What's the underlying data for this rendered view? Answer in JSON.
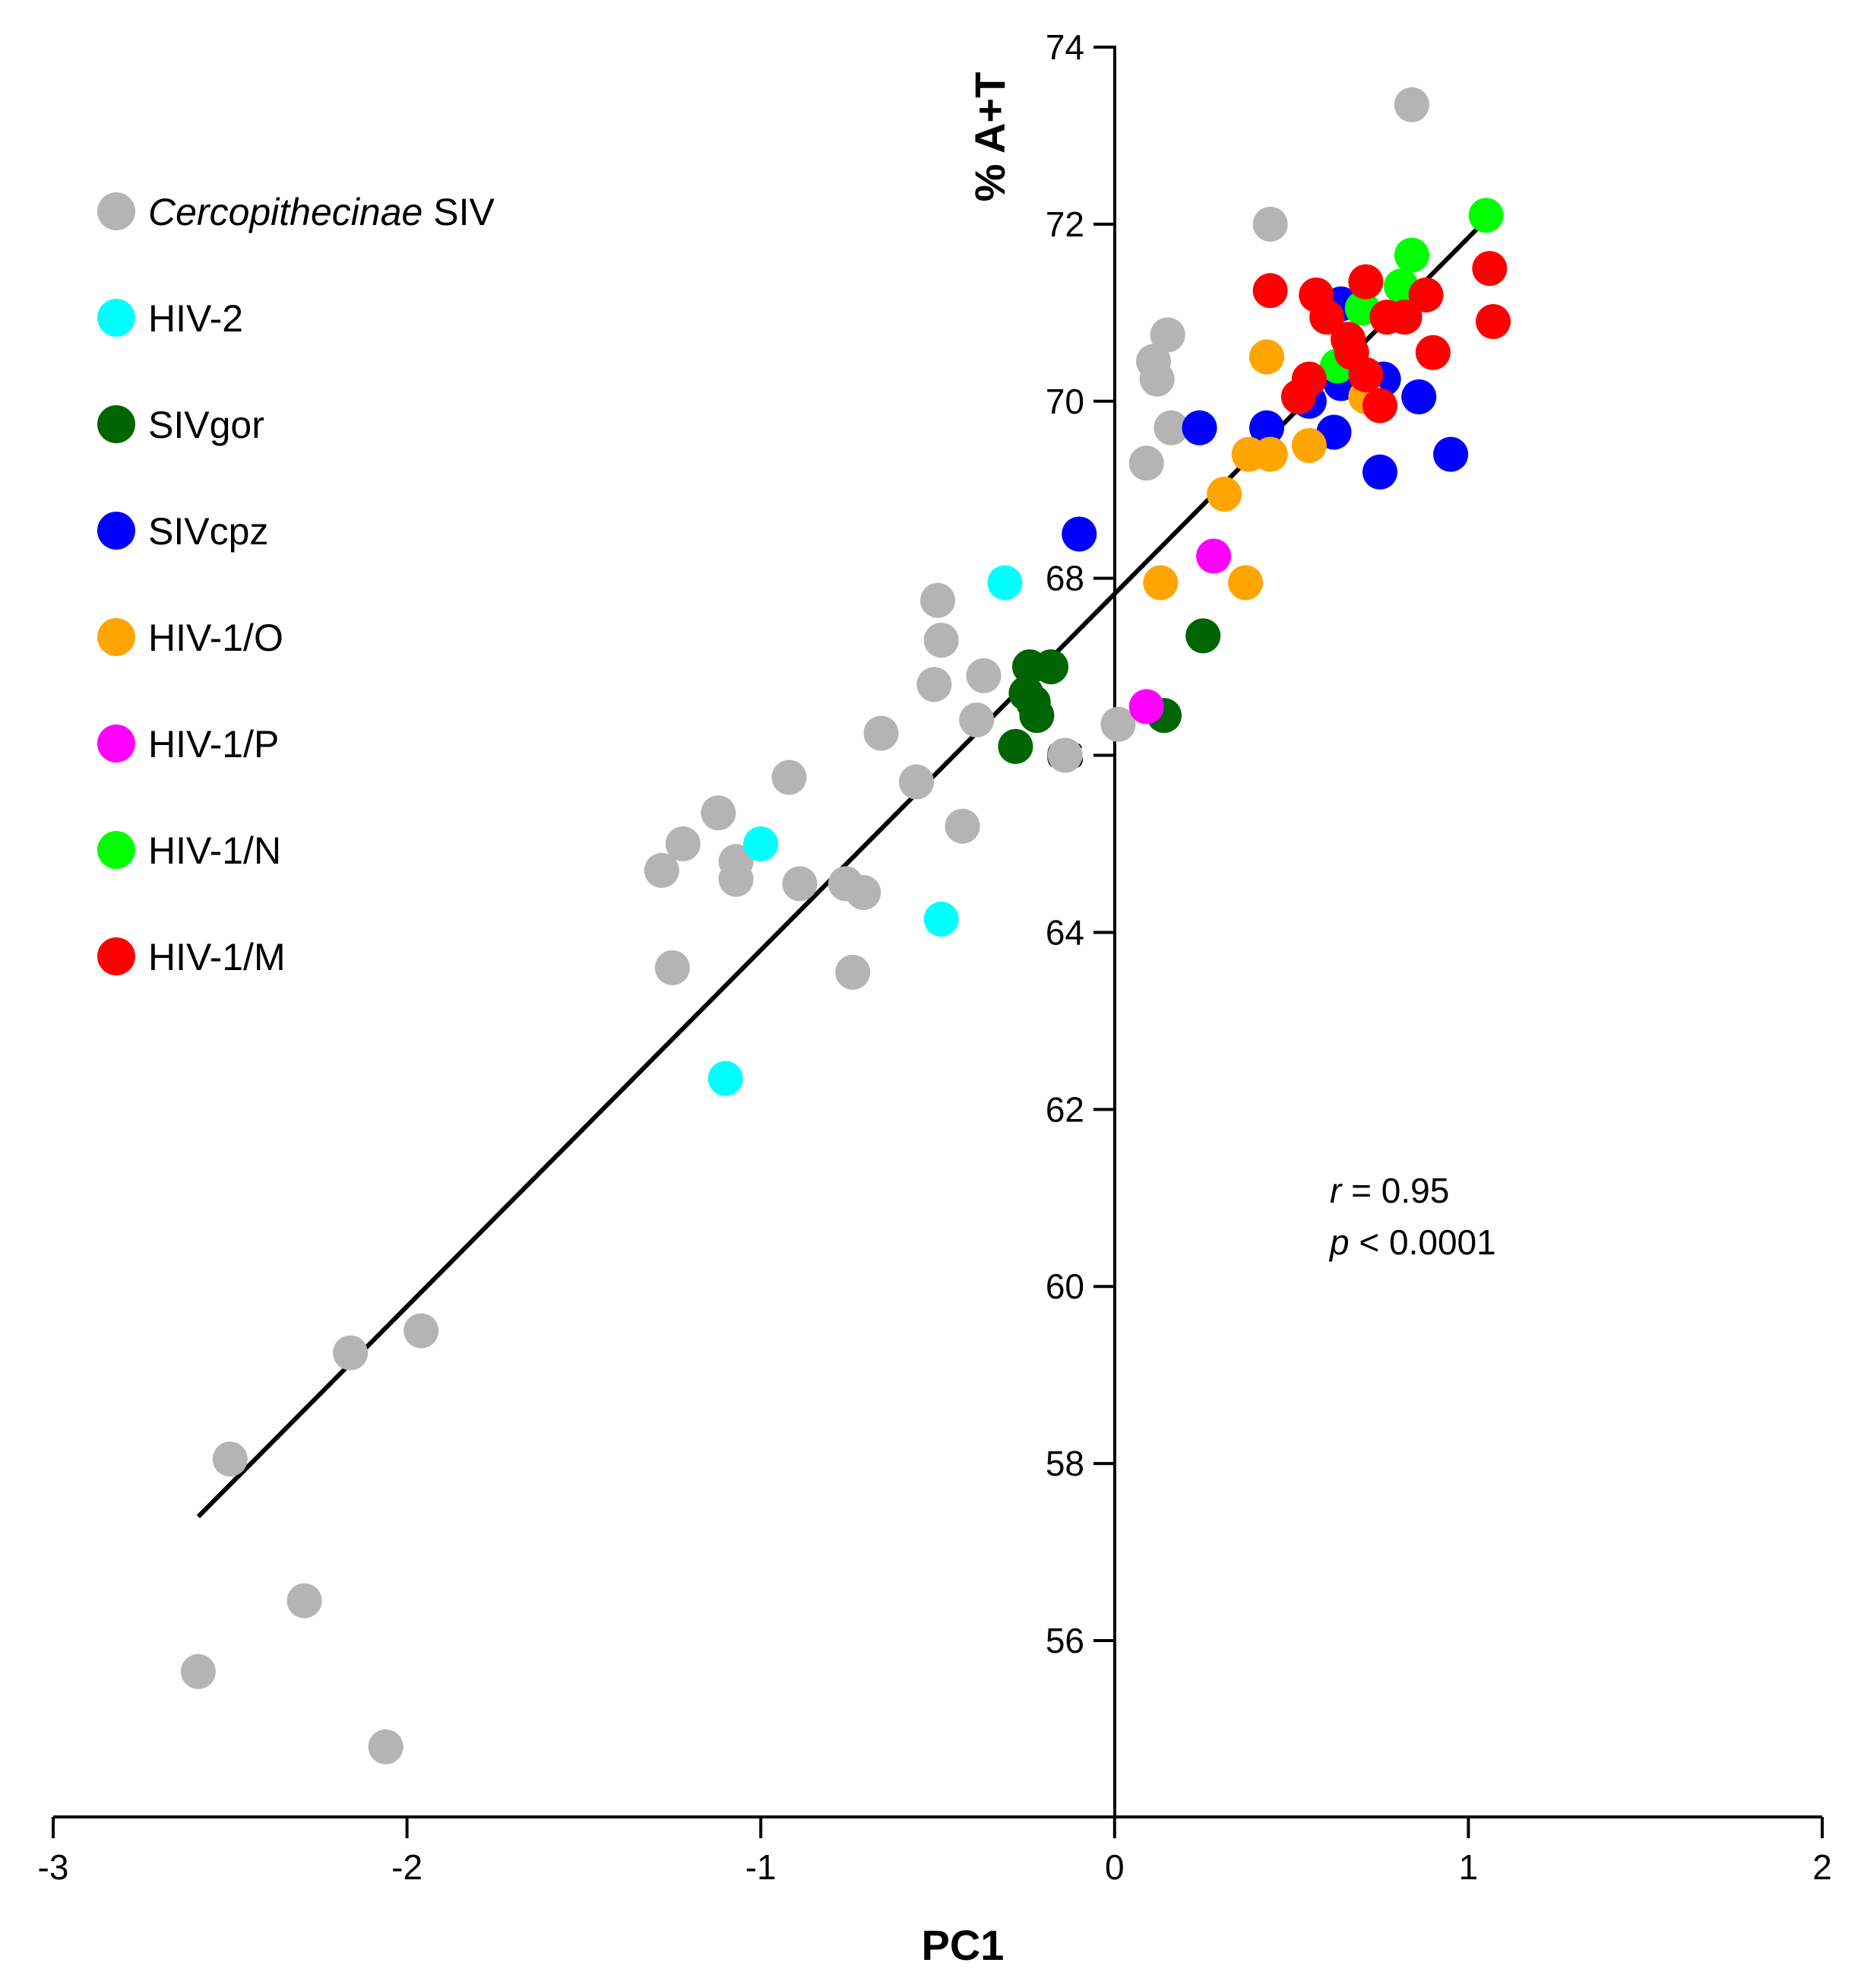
{
  "chart_data": {
    "type": "scatter",
    "title": "",
    "xlabel": "PC1",
    "ylabel": "% A+T",
    "xlim": [
      -3,
      2
    ],
    "ylim": [
      54.1,
      74
    ],
    "x_ticks": [
      -3,
      -2,
      -1,
      0,
      1,
      2
    ],
    "y_ticks": [
      56,
      58,
      60,
      62,
      64,
      66,
      68,
      70,
      72,
      74
    ],
    "grid": false,
    "legend_position": "top-left",
    "series": [
      {
        "name": "Cercopithecinae SIV",
        "name_italic": "Cercopithecinae",
        "name_rest": " SIV",
        "color": "#b4b4b4",
        "points": [
          [
            0.84,
            73.35
          ],
          [
            0.44,
            72.0
          ],
          [
            0.15,
            70.75
          ],
          [
            0.11,
            70.45
          ],
          [
            0.12,
            70.25
          ],
          [
            0.16,
            69.7
          ],
          [
            0.09,
            69.3
          ],
          [
            -0.5,
            67.75
          ],
          [
            -0.49,
            67.3
          ],
          [
            -0.37,
            66.9
          ],
          [
            -0.51,
            66.8
          ],
          [
            -0.39,
            66.4
          ],
          [
            -0.66,
            66.25
          ],
          [
            0.01,
            66.35
          ],
          [
            -0.14,
            66.0
          ],
          [
            -0.56,
            65.7
          ],
          [
            -0.92,
            65.75
          ],
          [
            -1.12,
            65.35
          ],
          [
            -1.22,
            65.0
          ],
          [
            -1.07,
            64.8
          ],
          [
            -1.07,
            64.6
          ],
          [
            -1.28,
            64.7
          ],
          [
            -0.89,
            64.55
          ],
          [
            -0.76,
            64.55
          ],
          [
            -0.71,
            64.45
          ],
          [
            -0.43,
            65.2
          ],
          [
            -1.25,
            63.6
          ],
          [
            -0.74,
            63.55
          ],
          [
            -1.96,
            59.5
          ],
          [
            -2.16,
            59.25
          ],
          [
            -2.5,
            58.05
          ],
          [
            -2.29,
            56.45
          ],
          [
            -2.59,
            55.65
          ],
          [
            -2.06,
            54.8
          ]
        ]
      },
      {
        "name": "HIV-2",
        "color": "#00ffff",
        "points": [
          [
            -0.31,
            67.95
          ],
          [
            -1.0,
            65.0
          ],
          [
            -0.49,
            64.15
          ],
          [
            -1.1,
            62.35
          ]
        ]
      },
      {
        "name": "SIVgor",
        "color": "#006400",
        "points": [
          [
            0.25,
            67.35
          ],
          [
            -0.24,
            67.0
          ],
          [
            -0.18,
            67.0
          ],
          [
            -0.25,
            66.7
          ],
          [
            -0.23,
            66.6
          ],
          [
            -0.22,
            66.45
          ],
          [
            -0.28,
            66.1
          ],
          [
            0.14,
            66.45
          ]
        ]
      },
      {
        "name": "SIVcpz",
        "color": "#0000ff",
        "points": [
          [
            0.64,
            71.1
          ],
          [
            0.76,
            70.25
          ],
          [
            0.64,
            70.2
          ],
          [
            0.86,
            70.05
          ],
          [
            0.55,
            70.0
          ],
          [
            0.24,
            69.7
          ],
          [
            0.43,
            69.7
          ],
          [
            0.62,
            69.65
          ],
          [
            0.75,
            69.2
          ],
          [
            0.95,
            69.4
          ],
          [
            -0.1,
            68.5
          ]
        ]
      },
      {
        "name": "HIV-1/O",
        "color": "#ffa500",
        "points": [
          [
            0.43,
            70.5
          ],
          [
            0.71,
            70.05
          ],
          [
            0.38,
            69.4
          ],
          [
            0.44,
            69.4
          ],
          [
            0.55,
            69.5
          ],
          [
            0.31,
            68.95
          ],
          [
            0.13,
            67.95
          ],
          [
            0.37,
            67.95
          ]
        ]
      },
      {
        "name": "HIV-1/P",
        "color": "#ff00ff",
        "points": [
          [
            0.28,
            68.25
          ],
          [
            0.09,
            66.55
          ]
        ]
      },
      {
        "name": "HIV-1/N",
        "color": "#00ff00",
        "points": [
          [
            1.05,
            72.1
          ],
          [
            0.84,
            71.65
          ],
          [
            0.81,
            71.3
          ],
          [
            0.7,
            71.05
          ],
          [
            0.63,
            70.4
          ]
        ]
      },
      {
        "name": "HIV-1/M",
        "color": "#ff0000",
        "points": [
          [
            0.44,
            71.25
          ],
          [
            0.57,
            71.2
          ],
          [
            0.71,
            71.35
          ],
          [
            0.88,
            71.2
          ],
          [
            1.06,
            71.5
          ],
          [
            0.6,
            70.95
          ],
          [
            0.77,
            70.95
          ],
          [
            0.82,
            70.95
          ],
          [
            0.66,
            70.7
          ],
          [
            0.67,
            70.55
          ],
          [
            0.9,
            70.55
          ],
          [
            1.07,
            70.9
          ],
          [
            0.71,
            70.3
          ],
          [
            0.55,
            70.25
          ],
          [
            0.52,
            70.05
          ],
          [
            0.75,
            69.95
          ]
        ]
      }
    ],
    "fit_line": {
      "x": [
        -2.59,
        1.05
      ],
      "y": [
        57.4,
        72.05
      ],
      "color": "#000000"
    },
    "annotations": {
      "r_symbol": "r",
      "r_value": " = 0.95",
      "p_symbol": "p",
      "p_value": " < 0.0001"
    }
  }
}
